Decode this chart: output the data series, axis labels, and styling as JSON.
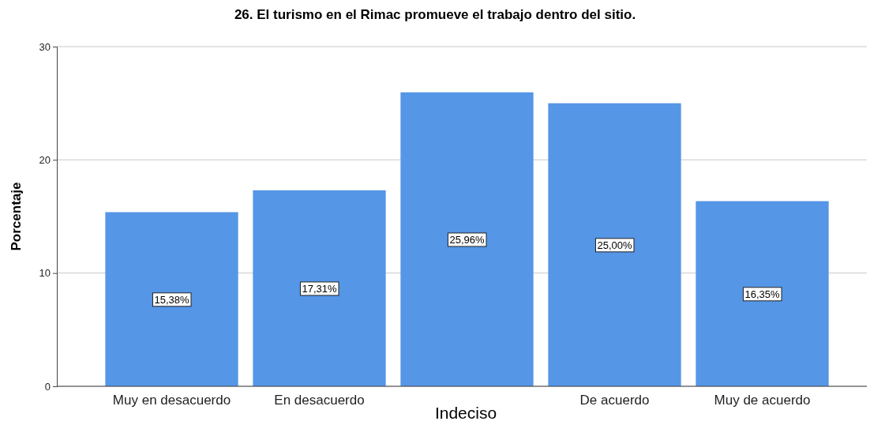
{
  "chart_data": {
    "type": "bar",
    "title": "26. El turismo en el Rimac promueve el trabajo dentro del sitio.",
    "xlabel": "Indeciso",
    "ylabel": "Porcentaje",
    "categories": [
      "Muy en desacuerdo",
      "En desacuerdo",
      null,
      "De acuerdo",
      "Muy de acuerdo"
    ],
    "values": [
      15.38,
      17.31,
      25.96,
      25.0,
      16.35
    ],
    "value_labels": [
      "15,38%",
      "17,31%",
      "25,96%",
      "25,00%",
      "16,35%"
    ],
    "color": "#5596e6",
    "ylim": [
      0,
      30
    ],
    "yticks": [
      0,
      10,
      20,
      30
    ],
    "grid": "y"
  }
}
